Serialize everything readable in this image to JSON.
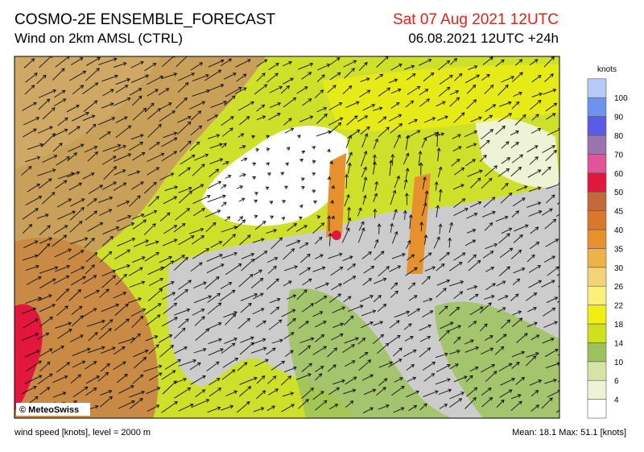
{
  "header": {
    "title": "COSMO-2E ENSEMBLE_FORECAST",
    "subtitle": "Wind on 2km AMSL (CTRL)",
    "valid_time": "Sat 07 Aug 2021 12UTC",
    "run_time": "06.08.2021 12UTC +24h"
  },
  "legend": {
    "unit": "knots",
    "levels": [
      {
        "value": 4,
        "color": "#ffffff"
      },
      {
        "value": 6,
        "color": "#eef3d6"
      },
      {
        "value": 10,
        "color": "#d3e4a4"
      },
      {
        "value": 14,
        "color": "#9cc25c"
      },
      {
        "value": 18,
        "color": "#cfe01c"
      },
      {
        "value": 22,
        "color": "#f0ef10"
      },
      {
        "value": 26,
        "color": "#fbf07a"
      },
      {
        "value": 30,
        "color": "#f4d27a"
      },
      {
        "value": 35,
        "color": "#eeb24a"
      },
      {
        "value": 40,
        "color": "#e7912e"
      },
      {
        "value": 45,
        "color": "#d9782c"
      },
      {
        "value": 50,
        "color": "#c3693c"
      },
      {
        "value": 60,
        "color": "#e3163e"
      },
      {
        "value": 70,
        "color": "#e0559a"
      },
      {
        "value": 80,
        "color": "#9a74b0"
      },
      {
        "value": 90,
        "color": "#5a5be6"
      },
      {
        "value": 100,
        "color": "#6d92f0"
      }
    ],
    "top_color": "#b6ccf6"
  },
  "credit": "© MeteoSwiss",
  "footer": {
    "left": "wind speed [knots], level = 2000 m",
    "right": "Mean:  18.1 Max:  51.1 [knots]"
  }
}
